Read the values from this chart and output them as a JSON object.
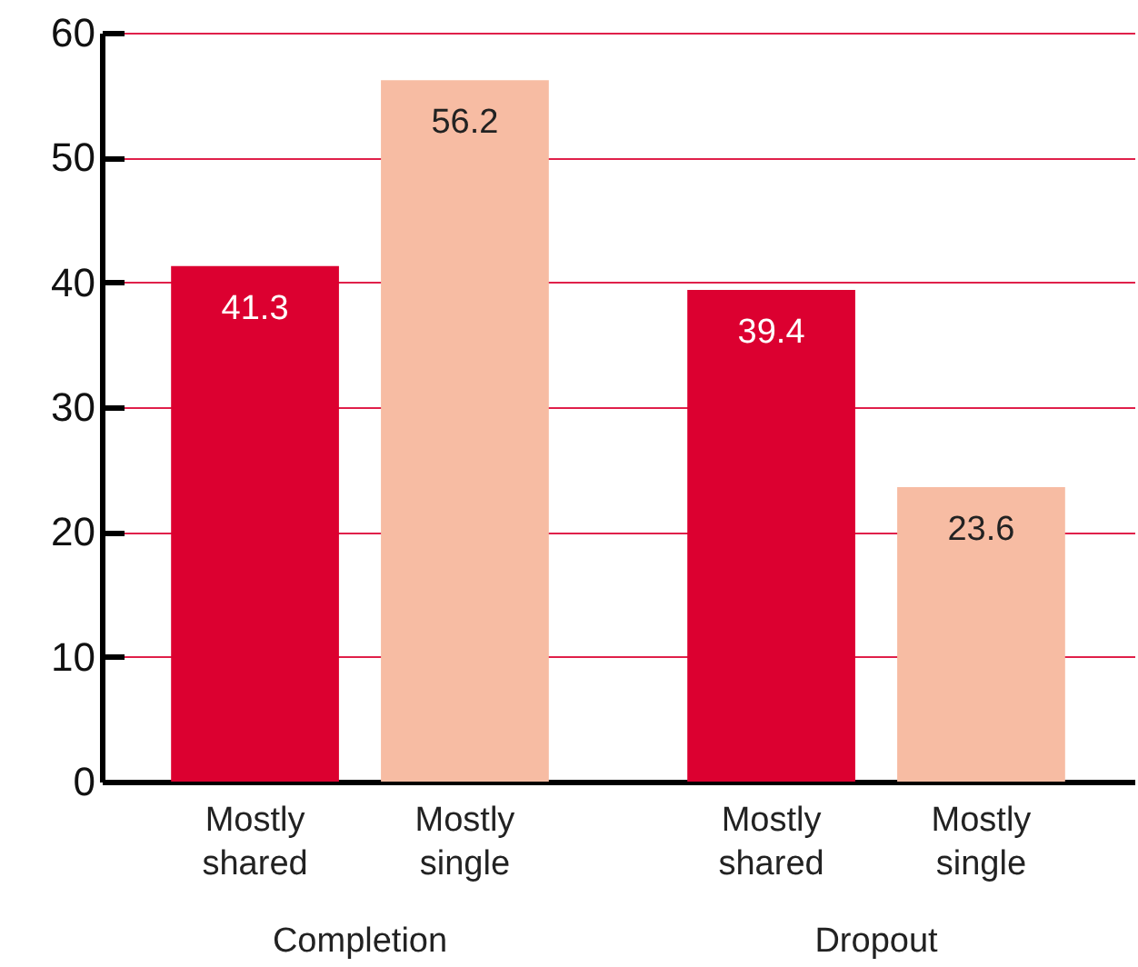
{
  "chart_data": {
    "type": "bar",
    "categories": [
      "Completion",
      "Dropout"
    ],
    "series": [
      {
        "name": "Mostly shared",
        "color": "#dc0030",
        "values": [
          41.3,
          39.4
        ]
      },
      {
        "name": "Mostly single",
        "color": "#f7bca3",
        "values": [
          56.2,
          23.6
        ]
      }
    ],
    "ylim": [
      0,
      60
    ],
    "yticks": [
      0,
      10,
      20,
      30,
      40,
      50,
      60
    ],
    "grid": "y",
    "data_labels": true
  }
}
